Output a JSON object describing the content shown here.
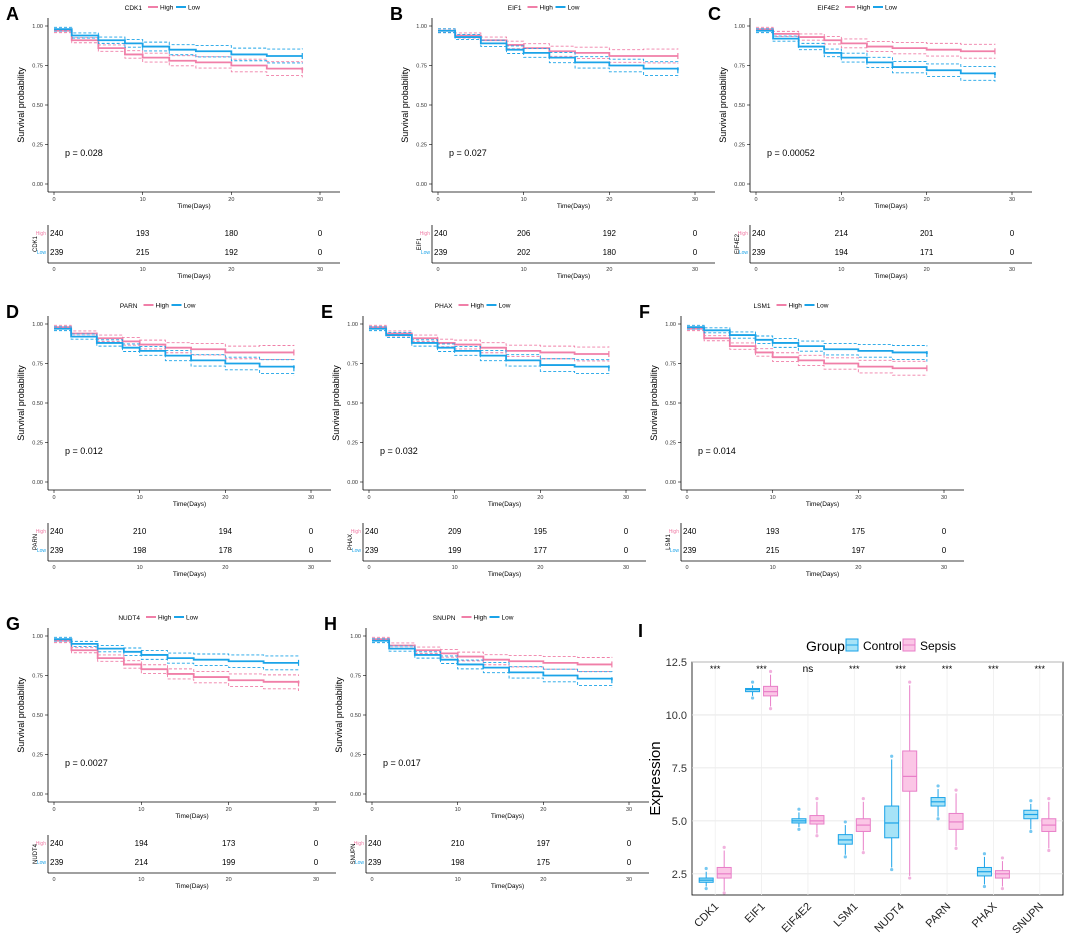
{
  "chart_data": [
    {
      "panel": "A",
      "type": "line",
      "gene": "CDK1",
      "legend": [
        "High",
        "Low"
      ],
      "p": "p = 0.028",
      "ylabel": "Survival probability",
      "xlabel": "Time(Days)",
      "xlim": [
        0,
        30
      ],
      "ylim": [
        0,
        1
      ],
      "xticks": [
        "0",
        "10",
        "20",
        "30"
      ],
      "yticks": [
        "0.00",
        "0.25",
        "0.50",
        "0.75",
        "1.00"
      ],
      "series": [
        {
          "name": "High",
          "color": "#f07fa8",
          "x": [
            0,
            2,
            5,
            8,
            10,
            13,
            16,
            20,
            24,
            28
          ],
          "y": [
            0.97,
            0.91,
            0.86,
            0.82,
            0.8,
            0.78,
            0.77,
            0.75,
            0.73,
            0.72
          ]
        },
        {
          "name": "Low",
          "color": "#1aa3e8",
          "x": [
            0,
            2,
            5,
            8,
            10,
            13,
            16,
            20,
            24,
            28
          ],
          "y": [
            0.98,
            0.94,
            0.91,
            0.89,
            0.87,
            0.85,
            0.84,
            0.82,
            0.81,
            0.81
          ]
        }
      ],
      "risk_table": {
        "label": "CDK1",
        "rows": [
          {
            "name": "High",
            "values": [
              "240",
              "193",
              "180",
              "0"
            ]
          },
          {
            "name": "Low",
            "values": [
              "239",
              "215",
              "192",
              "0"
            ]
          }
        ]
      }
    },
    {
      "panel": "B",
      "type": "line",
      "gene": "EIF1",
      "legend": [
        "High",
        "Low"
      ],
      "p": "p = 0.027",
      "ylabel": "Survival probability",
      "xlabel": "Time(Days)",
      "xlim": [
        0,
        30
      ],
      "ylim": [
        0,
        1
      ],
      "xticks": [
        "0",
        "10",
        "20",
        "30"
      ],
      "yticks": [
        "0.00",
        "0.25",
        "0.50",
        "0.75",
        "1.00"
      ],
      "series": [
        {
          "name": "High",
          "color": "#f07fa8",
          "x": [
            0,
            2,
            5,
            8,
            10,
            13,
            16,
            20,
            24,
            28
          ],
          "y": [
            0.97,
            0.94,
            0.91,
            0.88,
            0.86,
            0.84,
            0.83,
            0.81,
            0.81,
            0.81
          ]
        },
        {
          "name": "Low",
          "color": "#1aa3e8",
          "x": [
            0,
            2,
            5,
            8,
            10,
            13,
            16,
            20,
            24,
            28
          ],
          "y": [
            0.97,
            0.93,
            0.89,
            0.85,
            0.83,
            0.8,
            0.77,
            0.75,
            0.73,
            0.72
          ]
        }
      ],
      "risk_table": {
        "label": "EIF1",
        "rows": [
          {
            "name": "High",
            "values": [
              "240",
              "206",
              "192",
              "0"
            ]
          },
          {
            "name": "Low",
            "values": [
              "239",
              "202",
              "180",
              "0"
            ]
          }
        ]
      }
    },
    {
      "panel": "C",
      "type": "line",
      "gene": "EIF4E2",
      "legend": [
        "High",
        "Low"
      ],
      "p": "p = 0.00052",
      "ylabel": "Survival probability",
      "xlabel": "Time(Days)",
      "xlim": [
        0,
        30
      ],
      "ylim": [
        0,
        1
      ],
      "xticks": [
        "0",
        "10",
        "20",
        "30"
      ],
      "yticks": [
        "0.00",
        "0.25",
        "0.50",
        "0.75",
        "1.00"
      ],
      "series": [
        {
          "name": "High",
          "color": "#f07fa8",
          "x": [
            0,
            2,
            5,
            8,
            10,
            13,
            16,
            20,
            24,
            28
          ],
          "y": [
            0.98,
            0.95,
            0.93,
            0.91,
            0.89,
            0.87,
            0.86,
            0.85,
            0.84,
            0.84
          ]
        },
        {
          "name": "Low",
          "color": "#1aa3e8",
          "x": [
            0,
            2,
            5,
            8,
            10,
            13,
            16,
            20,
            24,
            28
          ],
          "y": [
            0.97,
            0.92,
            0.87,
            0.83,
            0.8,
            0.77,
            0.74,
            0.72,
            0.7,
            0.69
          ]
        }
      ],
      "risk_table": {
        "label": "EIF4E2",
        "rows": [
          {
            "name": "High",
            "values": [
              "240",
              "214",
              "201",
              "0"
            ]
          },
          {
            "name": "Low",
            "values": [
              "239",
              "194",
              "171",
              "0"
            ]
          }
        ]
      }
    },
    {
      "panel": "D",
      "type": "line",
      "gene": "PARN",
      "legend": [
        "High",
        "Low"
      ],
      "p": "p = 0.012",
      "ylabel": "Survival probability",
      "xlabel": "Time(Days)",
      "xlim": [
        0,
        30
      ],
      "ylim": [
        0,
        1
      ],
      "xticks": [
        "0",
        "10",
        "20",
        "30"
      ],
      "yticks": [
        "0.00",
        "0.25",
        "0.50",
        "0.75",
        "1.00"
      ],
      "series": [
        {
          "name": "High",
          "color": "#f07fa8",
          "x": [
            0,
            2,
            5,
            8,
            10,
            13,
            16,
            20,
            24,
            28
          ],
          "y": [
            0.98,
            0.94,
            0.91,
            0.89,
            0.87,
            0.85,
            0.84,
            0.82,
            0.82,
            0.82
          ]
        },
        {
          "name": "Low",
          "color": "#1aa3e8",
          "x": [
            0,
            2,
            5,
            8,
            10,
            13,
            16,
            20,
            24,
            28
          ],
          "y": [
            0.97,
            0.92,
            0.88,
            0.85,
            0.83,
            0.8,
            0.77,
            0.75,
            0.73,
            0.72
          ]
        }
      ],
      "risk_table": {
        "label": "PARN",
        "rows": [
          {
            "name": "High",
            "values": [
              "240",
              "210",
              "194",
              "0"
            ]
          },
          {
            "name": "Low",
            "values": [
              "239",
              "198",
              "178",
              "0"
            ]
          }
        ]
      }
    },
    {
      "panel": "E",
      "type": "line",
      "gene": "PHAX",
      "legend": [
        "High",
        "Low"
      ],
      "p": "p = 0.032",
      "ylabel": "Survival probability",
      "xlabel": "Time(Days)",
      "xlim": [
        0,
        30
      ],
      "ylim": [
        0,
        1
      ],
      "xticks": [
        "0",
        "10",
        "20",
        "30"
      ],
      "yticks": [
        "0.00",
        "0.25",
        "0.50",
        "0.75",
        "1.00"
      ],
      "series": [
        {
          "name": "High",
          "color": "#f07fa8",
          "x": [
            0,
            2,
            5,
            8,
            10,
            13,
            16,
            20,
            24,
            28
          ],
          "y": [
            0.98,
            0.94,
            0.91,
            0.88,
            0.87,
            0.85,
            0.83,
            0.82,
            0.81,
            0.81
          ]
        },
        {
          "name": "Low",
          "color": "#1aa3e8",
          "x": [
            0,
            2,
            5,
            8,
            10,
            13,
            16,
            20,
            24,
            28
          ],
          "y": [
            0.97,
            0.93,
            0.88,
            0.85,
            0.83,
            0.8,
            0.77,
            0.74,
            0.73,
            0.72
          ]
        }
      ],
      "risk_table": {
        "label": "PHAX",
        "rows": [
          {
            "name": "High",
            "values": [
              "240",
              "209",
              "195",
              "0"
            ]
          },
          {
            "name": "Low",
            "values": [
              "239",
              "199",
              "177",
              "0"
            ]
          }
        ]
      }
    },
    {
      "panel": "F",
      "type": "line",
      "gene": "LSM1",
      "legend": [
        "High",
        "Low"
      ],
      "p": "p = 0.014",
      "ylabel": "Survival probability",
      "xlabel": "Time(Days)",
      "xlim": [
        0,
        30
      ],
      "ylim": [
        0,
        1
      ],
      "xticks": [
        "0",
        "10",
        "20",
        "30"
      ],
      "yticks": [
        "0.00",
        "0.25",
        "0.50",
        "0.75",
        "1.00"
      ],
      "series": [
        {
          "name": "High",
          "color": "#f07fa8",
          "x": [
            0,
            2,
            5,
            8,
            10,
            13,
            16,
            20,
            24,
            28
          ],
          "y": [
            0.97,
            0.91,
            0.86,
            0.82,
            0.79,
            0.77,
            0.75,
            0.73,
            0.72,
            0.72
          ]
        },
        {
          "name": "Low",
          "color": "#1aa3e8",
          "x": [
            0,
            2,
            5,
            8,
            10,
            13,
            16,
            20,
            24,
            28
          ],
          "y": [
            0.98,
            0.96,
            0.93,
            0.9,
            0.88,
            0.86,
            0.84,
            0.83,
            0.82,
            0.81
          ]
        }
      ],
      "risk_table": {
        "label": "LSM1",
        "rows": [
          {
            "name": "High",
            "values": [
              "240",
              "193",
              "175",
              "0"
            ]
          },
          {
            "name": "Low",
            "values": [
              "239",
              "215",
              "197",
              "0"
            ]
          }
        ]
      }
    },
    {
      "panel": "G",
      "type": "line",
      "gene": "NUDT4",
      "legend": [
        "High",
        "Low"
      ],
      "p": "p = 0.0027",
      "ylabel": "Survival probability",
      "xlabel": "Time(Days)",
      "xlim": [
        0,
        30
      ],
      "ylim": [
        0,
        1
      ],
      "xticks": [
        "0",
        "10",
        "20",
        "30"
      ],
      "yticks": [
        "0.00",
        "0.25",
        "0.50",
        "0.75",
        "1.00"
      ],
      "series": [
        {
          "name": "High",
          "color": "#f07fa8",
          "x": [
            0,
            2,
            5,
            8,
            10,
            13,
            16,
            20,
            24,
            28
          ],
          "y": [
            0.97,
            0.91,
            0.86,
            0.82,
            0.79,
            0.76,
            0.74,
            0.72,
            0.71,
            0.7
          ]
        },
        {
          "name": "Low",
          "color": "#1aa3e8",
          "x": [
            0,
            2,
            5,
            8,
            10,
            13,
            16,
            20,
            24,
            28
          ],
          "y": [
            0.98,
            0.95,
            0.92,
            0.9,
            0.88,
            0.86,
            0.85,
            0.84,
            0.83,
            0.83
          ]
        }
      ],
      "risk_table": {
        "label": "NUDT4",
        "rows": [
          {
            "name": "High",
            "values": [
              "240",
              "194",
              "173",
              "0"
            ]
          },
          {
            "name": "Low",
            "values": [
              "239",
              "214",
              "199",
              "0"
            ]
          }
        ]
      }
    },
    {
      "panel": "H",
      "type": "line",
      "gene": "SNUPN",
      "legend": [
        "High",
        "Low"
      ],
      "p": "p = 0.017",
      "ylabel": "Survival probability",
      "xlabel": "Time(Days)",
      "xlim": [
        0,
        30
      ],
      "ylim": [
        0,
        1
      ],
      "xticks": [
        "0",
        "10",
        "20",
        "30"
      ],
      "yticks": [
        "0.00",
        "0.25",
        "0.50",
        "0.75",
        "1.00"
      ],
      "series": [
        {
          "name": "High",
          "color": "#f07fa8",
          "x": [
            0,
            2,
            5,
            8,
            10,
            13,
            16,
            20,
            24,
            28
          ],
          "y": [
            0.98,
            0.94,
            0.91,
            0.89,
            0.87,
            0.85,
            0.84,
            0.83,
            0.82,
            0.82
          ]
        },
        {
          "name": "Low",
          "color": "#1aa3e8",
          "x": [
            0,
            2,
            5,
            8,
            10,
            13,
            16,
            20,
            24,
            28
          ],
          "y": [
            0.97,
            0.92,
            0.88,
            0.85,
            0.82,
            0.8,
            0.77,
            0.75,
            0.73,
            0.72
          ]
        }
      ],
      "risk_table": {
        "label": "SNUPN",
        "rows": [
          {
            "name": "High",
            "values": [
              "240",
              "210",
              "197",
              "0"
            ]
          },
          {
            "name": "Low",
            "values": [
              "239",
              "198",
              "175",
              "0"
            ]
          }
        ]
      }
    },
    {
      "panel": "I",
      "type": "box",
      "legend_title": "Group",
      "ylabel": "Expression",
      "ylim": [
        1.5,
        12.5
      ],
      "yticks": [
        "2.5",
        "5.0",
        "7.5",
        "10.0",
        "12.5"
      ],
      "categories": [
        "CDK1",
        "EIF1",
        "EIF4E2",
        "LSM1",
        "NUDT4",
        "PARN",
        "PHAX",
        "SNUPN"
      ],
      "significance": [
        "***",
        "***",
        "ns",
        "***",
        "***",
        "***",
        "***",
        "***"
      ],
      "series": [
        {
          "name": "Control",
          "color": "#1aa3e8",
          "fill": "#a6e3f7",
          "boxes": [
            [
              1.9,
              2.1,
              2.2,
              2.3,
              2.6
            ],
            [
              10.9,
              11.1,
              11.2,
              11.25,
              11.4
            ],
            [
              4.7,
              4.9,
              5.0,
              5.1,
              5.4
            ],
            [
              3.4,
              3.9,
              4.1,
              4.35,
              4.8
            ],
            [
              2.8,
              4.2,
              4.9,
              5.7,
              7.9
            ],
            [
              5.2,
              5.7,
              5.9,
              6.1,
              6.5
            ],
            [
              2.0,
              2.4,
              2.6,
              2.8,
              3.3
            ],
            [
              4.6,
              5.1,
              5.3,
              5.5,
              5.8
            ]
          ]
        },
        {
          "name": "Sepsis",
          "color": "#e87ec8",
          "fill": "#fbc6e6",
          "boxes": [
            [
              1.7,
              2.3,
              2.5,
              2.8,
              3.6
            ],
            [
              10.4,
              10.9,
              11.1,
              11.35,
              11.9
            ],
            [
              4.4,
              4.85,
              5.0,
              5.25,
              5.9
            ],
            [
              3.6,
              4.5,
              4.8,
              5.1,
              5.9
            ],
            [
              2.4,
              6.4,
              7.1,
              8.3,
              11.4
            ],
            [
              3.8,
              4.6,
              4.95,
              5.35,
              6.3
            ],
            [
              1.9,
              2.3,
              2.5,
              2.65,
              3.1
            ],
            [
              3.7,
              4.5,
              4.8,
              5.1,
              5.9
            ]
          ]
        }
      ]
    }
  ]
}
